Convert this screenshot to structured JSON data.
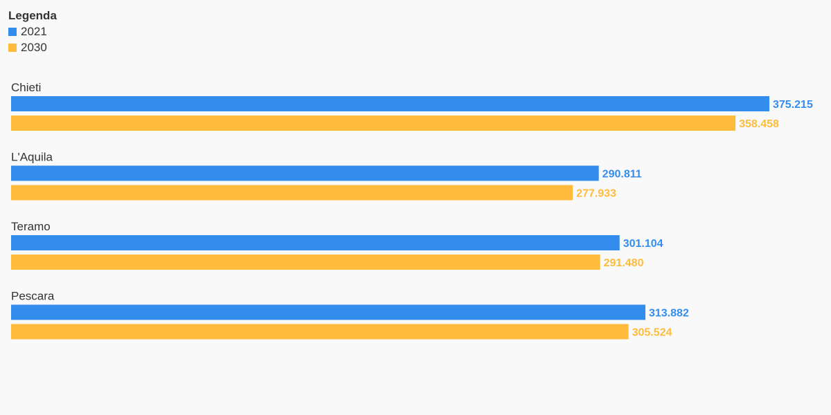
{
  "legend": {
    "title": "Legenda",
    "items": [
      {
        "label": "2021",
        "color": "#338ded"
      },
      {
        "label": "2030",
        "color": "#ffbb3b"
      }
    ]
  },
  "chart_data": {
    "type": "bar",
    "orientation": "horizontal",
    "categories": [
      "Chieti",
      "L'Aquila",
      "Teramo",
      "Pescara"
    ],
    "series": [
      {
        "name": "2021",
        "color": "#338ded",
        "values": [
          375215,
          290811,
          301104,
          313882
        ],
        "labels": [
          "375.215",
          "290.811",
          "301.104",
          "313.882"
        ]
      },
      {
        "name": "2030",
        "color": "#ffbb3b",
        "values": [
          358458,
          277933,
          291480,
          305524
        ],
        "labels": [
          "358.458",
          "277.933",
          "291.480",
          "305.524"
        ]
      }
    ],
    "xlim": [
      0,
      375215
    ],
    "grid": false,
    "legend_position": "top-left",
    "data_labels": true
  }
}
